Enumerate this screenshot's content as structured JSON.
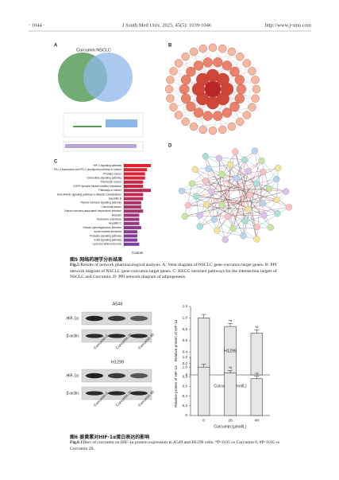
{
  "header": {
    "page": "· 1044 ·",
    "journal": "J South Med Univ, 2025, 45(5): 1039-1046",
    "url": "http://www.j-smu.com"
  },
  "fig5": {
    "panels": [
      "A",
      "B",
      "C",
      "D"
    ],
    "venn": {
      "title": "Curcumin NSCLC",
      "colors": [
        "#5a9e5a",
        "#8cb8e8"
      ]
    },
    "kegg": {
      "type": "bar",
      "categories": [
        "HIF-1 signaling pathway",
        "PD-L1 expression and PD-1 checkpoint pathway in cancer",
        "Prostate cancer",
        "Chemokine signaling pathway",
        "Pancreatic cancer",
        "EGFR tyrosine kinase inhibitor resistance",
        "Pathways in cancer",
        "AGE-RAGE signaling pathway in diabetic complications",
        "Hepatitis B",
        "Thyroid hormone signaling pathway",
        "Colorectal cancer",
        "Kaposi sarcoma-associated herpesvirus infection",
        "Measles",
        "Endocrine resistance",
        "Hepatitis C",
        "Human cytomegalovirus infection",
        "Acute myeloid leukemia",
        "Prolactin signaling pathway",
        "ErbB signaling pathway",
        "Lipid and atherosclerosis"
      ],
      "values": [
        14,
        12,
        11,
        11,
        10,
        10,
        14,
        10,
        10,
        9,
        9,
        10,
        8,
        8,
        8,
        9,
        7,
        7,
        7,
        8
      ],
      "xlabel": "Counts",
      "colors": [
        "#e3202b",
        "#7a3fa3"
      ]
    },
    "caption_cn": "图5 网络药理学分析结果",
    "caption_en_label": "Fig.5",
    "caption_en": "Results of network pharmacological analysis. A: Venn diagram of NSCLC gene-curcumin target genes. B: PPI network diagram of NSCLC gene-curcumin target genes. C: KEGG enriched pathways for the intersection targets of NSCLC and Curcumin. D: PPI network diagram of adipogenesis."
  },
  "fig6": {
    "blots": [
      {
        "cell": "A549",
        "rows": [
          "HIF-1α",
          "β-actin"
        ],
        "lanes": [
          "Curcumin 0",
          "Curcumin 20",
          "Curcumin 40"
        ]
      },
      {
        "cell": "H1299",
        "rows": [
          "HIF-1α",
          "β-actin"
        ],
        "lanes": [
          "Curcumin 0",
          "Curcumin 20",
          "Curcumin 40"
        ]
      }
    ],
    "charts": [
      {
        "type": "bar",
        "ylabel": "Relative protein of HIF-1α",
        "xlabel": "Curcumin (μmol/L)",
        "categories": [
          "0",
          "20",
          "40"
        ],
        "values": [
          1.0,
          0.85,
          0.73
        ],
        "errors": [
          0.06,
          0.05,
          0.06
        ],
        "annotations": {
          "20": "*#",
          "40": "*#"
        },
        "ylim": [
          0,
          1.2
        ],
        "yticks": [
          0,
          0.2,
          0.4,
          0.6,
          0.8,
          {
            "value": 1,
            "label": "1.0"
          },
          1.2
        ]
      },
      {
        "type": "bar",
        "title": "H1299",
        "ylabel": "Relative protein of HIF-1α",
        "xlabel": "Curcumin (μmol/L)",
        "categories": [
          "0",
          "20",
          "40"
        ],
        "values": [
          1.0,
          0.88,
          0.76
        ],
        "errors": [
          0.06,
          0.05,
          0.05
        ],
        "annotations": {
          "20": "*#",
          "40": "*#"
        },
        "ylim": [
          0,
          1.2
        ],
        "yticks": [
          0,
          0.2,
          0.4,
          0.6,
          0.8,
          {
            "value": 1,
            "label": "1.0"
          },
          1.2
        ]
      }
    ],
    "caption_cn": "图6 姜黄素对HIF-1α蛋白表达的影响",
    "caption_en_label": "Fig.6",
    "caption_en": "Effect of curcumin on HIF-1α protein expression in A549 and H1299 cells. *P<0.05 vs Curcumin 0, #P<0.05 vs Curcumin 20."
  }
}
